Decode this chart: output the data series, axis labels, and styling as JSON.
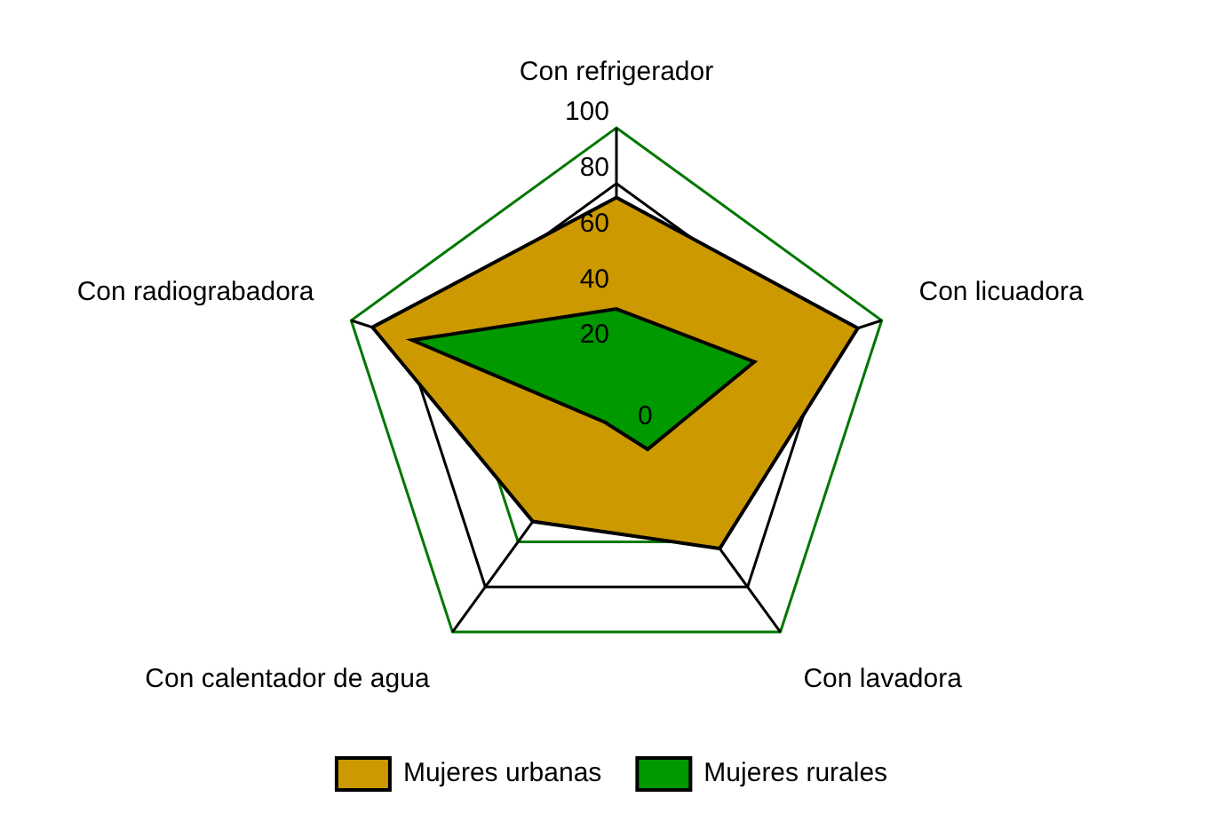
{
  "chart_data": {
    "type": "radar",
    "categories": [
      "Con refrigerador",
      "Con licuadora",
      "Con lavadora",
      "Con calentador de agua",
      "Con radiograbadora"
    ],
    "series": [
      {
        "name": "Mujeres urbanas",
        "color": "#cc9900",
        "values": [
          75,
          91,
          63,
          51,
          92
        ]
      },
      {
        "name": "Mujeres rurales",
        "color": "#009900",
        "values": [
          35,
          52,
          19,
          7,
          77
        ]
      }
    ],
    "ylim": [
      0,
      100
    ],
    "yticks": [
      0,
      20,
      40,
      60,
      80,
      100
    ],
    "grid": true,
    "legend": "bottom"
  }
}
